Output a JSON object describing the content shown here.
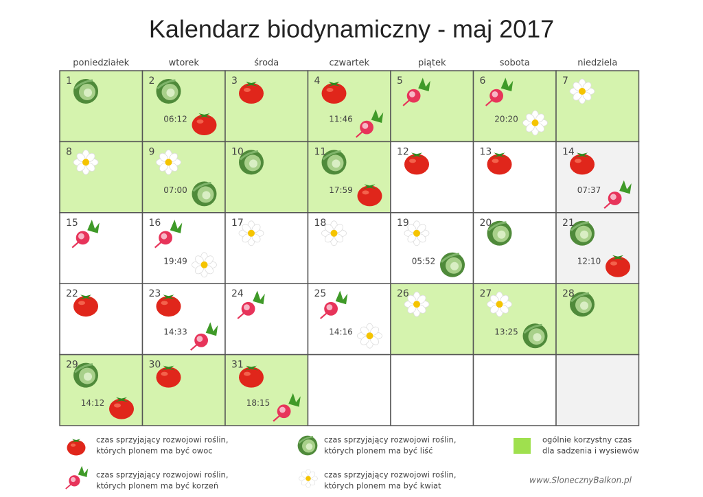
{
  "title": "Kalendarz biodynamiczny - maj 2017",
  "weekdays": [
    "poniedziałek",
    "wtorek",
    "środa",
    "czwartek",
    "piątek",
    "sobota",
    "niedziela"
  ],
  "days": [
    {
      "number": 1
    },
    {
      "number": 2,
      "time": "06:12"
    },
    {
      "number": 3
    },
    {
      "number": 4,
      "time": "11:46"
    },
    {
      "number": 5
    },
    {
      "number": 6,
      "time": "20:20"
    },
    {
      "number": 7
    },
    {
      "number": 8
    },
    {
      "number": 9,
      "time": "07:00"
    },
    {
      "number": 10
    },
    {
      "number": 11,
      "time": "17:59"
    },
    {
      "number": 12
    },
    {
      "number": 13
    },
    {
      "number": 14,
      "time": "07:37"
    },
    {
      "number": 15
    },
    {
      "number": 16,
      "time": "19:49"
    },
    {
      "number": 17
    },
    {
      "number": 18
    },
    {
      "number": 19,
      "time": "05:52"
    },
    {
      "number": 20
    },
    {
      "number": 21,
      "time": "12:10"
    },
    {
      "number": 22
    },
    {
      "number": 23,
      "time": "14:33"
    },
    {
      "number": 24
    },
    {
      "number": 25,
      "time": "14:16"
    },
    {
      "number": 26
    },
    {
      "number": 27,
      "time": "13:25"
    },
    {
      "number": 28
    },
    {
      "number": 29,
      "time": "14:12"
    },
    {
      "number": 30
    },
    {
      "number": 31,
      "time": "18:15"
    }
  ],
  "legend": [
    {
      "lines": [
        "czas sprzyjający rozwojowi roślin,",
        "których plonem ma być owoc"
      ]
    },
    {
      "lines": [
        "czas sprzyjający rozwojowi roślin,",
        "których plonem ma być liść"
      ]
    },
    {
      "lines": [
        "ogólnie korzystny czas",
        "dla sadzenia i wysiewów"
      ]
    },
    {
      "lines": [
        "czas sprzyjający rozwojowi roślin,",
        "których plonem ma być korzeń"
      ]
    },
    {
      "lines": [
        "czas sprzyjający rozwojowi roślin,",
        "których plonem ma być kwiat"
      ]
    }
  ],
  "footer": "www.SlonecznyBalkon.pl"
}
